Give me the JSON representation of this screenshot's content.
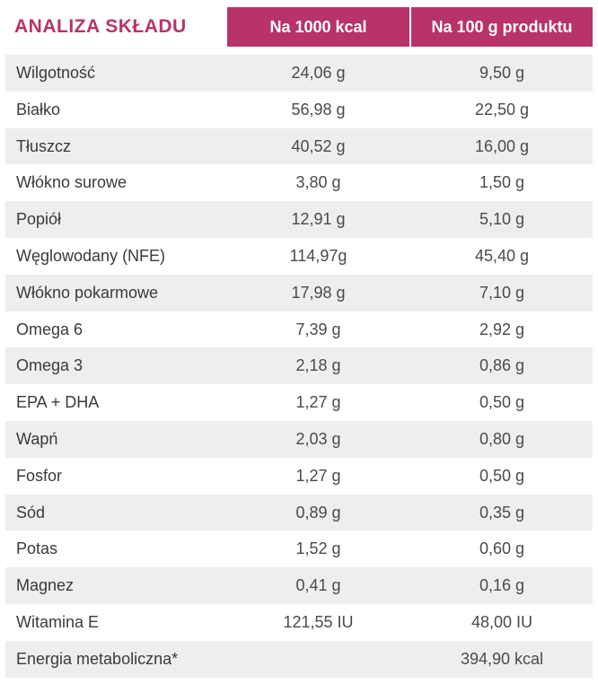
{
  "table": {
    "title": "ANALIZA SKŁADU",
    "columns": [
      "Na 1000 kcal",
      "Na 100 g produktu"
    ],
    "rows": [
      {
        "name": "Wilgotność",
        "per_1000kcal": "24,06 g",
        "per_100g": "9,50 g"
      },
      {
        "name": "Białko",
        "per_1000kcal": "56,98 g",
        "per_100g": "22,50 g"
      },
      {
        "name": "Tłuszcz",
        "per_1000kcal": "40,52 g",
        "per_100g": "16,00 g"
      },
      {
        "name": "Włókno surowe",
        "per_1000kcal": "3,80 g",
        "per_100g": "1,50 g"
      },
      {
        "name": "Popiół",
        "per_1000kcal": "12,91 g",
        "per_100g": "5,10 g"
      },
      {
        "name": "Węglowodany (NFE)",
        "per_1000kcal": "114,97g",
        "per_100g": "45,40 g"
      },
      {
        "name": "Włókno pokarmowe",
        "per_1000kcal": "17,98 g",
        "per_100g": "7,10 g"
      },
      {
        "name": "Omega 6",
        "per_1000kcal": "7,39 g",
        "per_100g": "2,92 g"
      },
      {
        "name": "Omega 3",
        "per_1000kcal": "2,18 g",
        "per_100g": "0,86 g"
      },
      {
        "name": "EPA + DHA",
        "per_1000kcal": "1,27 g",
        "per_100g": "0,50 g"
      },
      {
        "name": "Wapń",
        "per_1000kcal": "2,03 g",
        "per_100g": "0,80 g"
      },
      {
        "name": "Fosfor",
        "per_1000kcal": "1,27 g",
        "per_100g": "0,50 g"
      },
      {
        "name": "Sód",
        "per_1000kcal": "0,89 g",
        "per_100g": "0,35 g"
      },
      {
        "name": "Potas",
        "per_1000kcal": "1,52 g",
        "per_100g": "0,60 g"
      },
      {
        "name": "Magnez",
        "per_1000kcal": "0,41 g",
        "per_100g": "0,16 g"
      },
      {
        "name": "Witamina E",
        "per_1000kcal": "121,55 IU",
        "per_100g": "48,00 IU"
      },
      {
        "name": "Energia metaboliczna*",
        "per_1000kcal": "",
        "per_100g": "394,90 kcal"
      }
    ]
  },
  "colors": {
    "accent": "#b8336a",
    "stripe": "#eeeeee",
    "text": "#3a3a3a"
  }
}
